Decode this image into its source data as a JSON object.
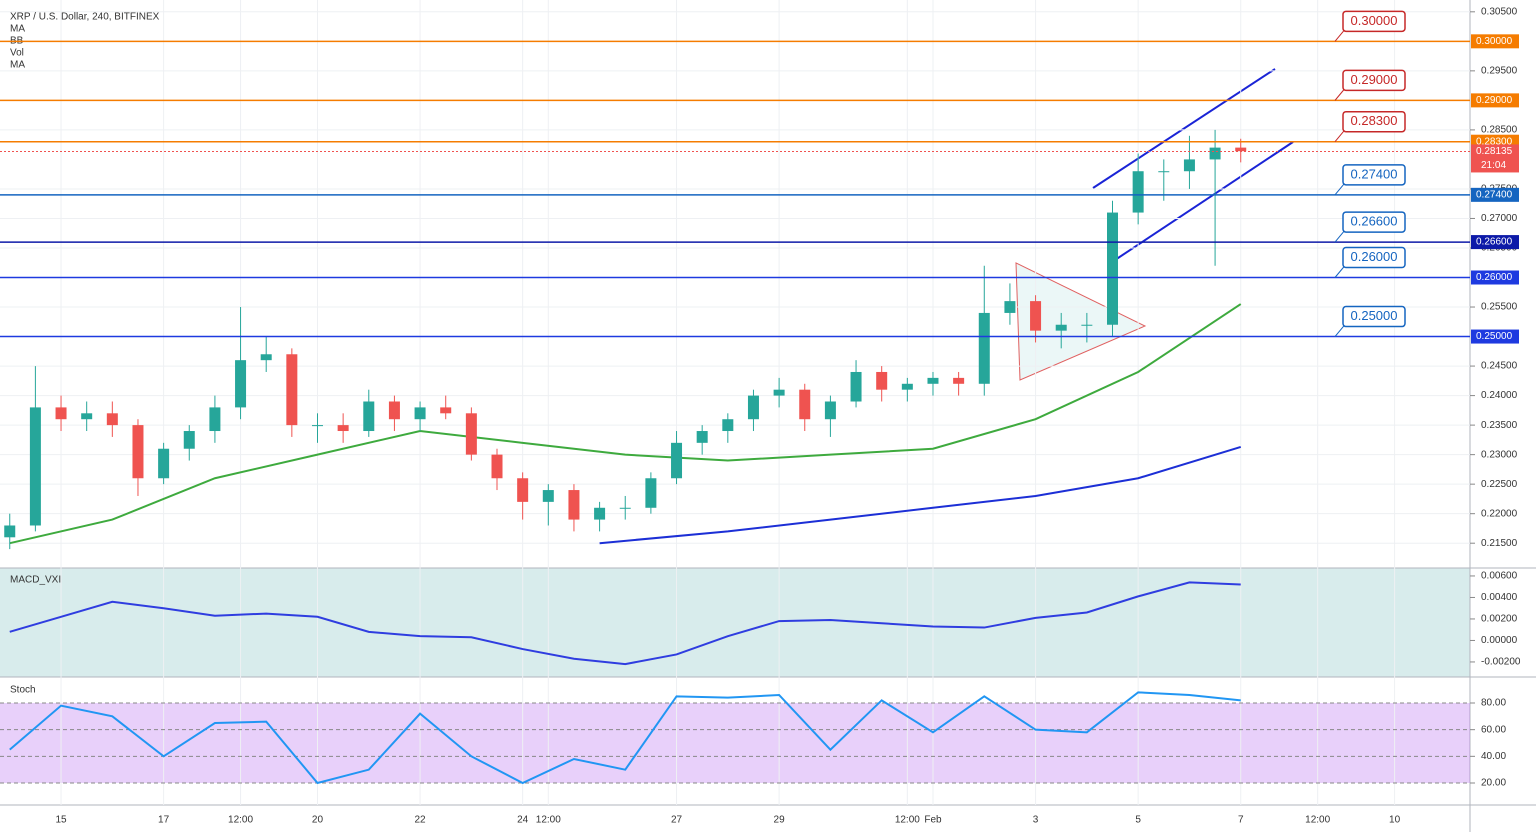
{
  "chart_data": [
    {
      "type": "candlestick",
      "title": "XRP / U.S. Dollar, 240, BITFINEX",
      "indicators": [
        "MA",
        "BB",
        "Vol",
        "MA"
      ],
      "x": [
        14.0,
        14.5,
        15.0,
        15.5,
        16.0,
        16.5,
        17.0,
        17.5,
        18.0,
        18.5,
        19.0,
        19.5,
        20.0,
        20.5,
        21.0,
        21.5,
        22.0,
        22.5,
        23.0,
        23.5,
        24.0,
        24.5,
        25.0,
        25.5,
        26.0,
        26.5,
        27.0,
        27.5,
        28.0,
        28.5,
        29.0,
        29.5,
        30.0,
        30.5,
        31.0,
        31.5,
        32.0,
        32.5,
        33.0,
        33.5,
        34.0,
        34.5,
        35.0,
        35.5,
        36.0,
        36.5,
        37.0,
        37.5,
        38.0
      ],
      "open": [
        0.216,
        0.218,
        0.238,
        0.236,
        0.237,
        0.235,
        0.226,
        0.231,
        0.234,
        0.238,
        0.246,
        0.247,
        0.235,
        0.235,
        0.234,
        0.239,
        0.236,
        0.238,
        0.237,
        0.23,
        0.226,
        0.222,
        0.224,
        0.219,
        0.221,
        0.221,
        0.226,
        0.232,
        0.234,
        0.236,
        0.24,
        0.241,
        0.236,
        0.239,
        0.244,
        0.241,
        0.242,
        0.243,
        0.242,
        0.254,
        0.256,
        0.251,
        0.252,
        0.252,
        0.271,
        0.278,
        0.278,
        0.28,
        0.282
      ],
      "high": [
        0.22,
        0.245,
        0.24,
        0.239,
        0.239,
        0.236,
        0.232,
        0.235,
        0.24,
        0.255,
        0.25,
        0.248,
        0.237,
        0.237,
        0.241,
        0.24,
        0.239,
        0.24,
        0.238,
        0.231,
        0.227,
        0.225,
        0.225,
        0.222,
        0.223,
        0.227,
        0.234,
        0.235,
        0.237,
        0.241,
        0.243,
        0.242,
        0.24,
        0.246,
        0.245,
        0.243,
        0.244,
        0.244,
        0.262,
        0.259,
        0.257,
        0.254,
        0.254,
        0.273,
        0.281,
        0.28,
        0.284,
        0.285,
        0.2835
      ],
      "low": [
        0.214,
        0.217,
        0.234,
        0.234,
        0.233,
        0.223,
        0.225,
        0.229,
        0.232,
        0.236,
        0.244,
        0.233,
        0.232,
        0.232,
        0.233,
        0.234,
        0.234,
        0.236,
        0.229,
        0.224,
        0.219,
        0.218,
        0.217,
        0.217,
        0.219,
        0.22,
        0.225,
        0.23,
        0.232,
        0.234,
        0.238,
        0.234,
        0.233,
        0.238,
        0.239,
        0.239,
        0.24,
        0.24,
        0.24,
        0.252,
        0.249,
        0.248,
        0.249,
        0.25,
        0.269,
        0.273,
        0.275,
        0.262,
        0.2795
      ],
      "close": [
        0.218,
        0.238,
        0.236,
        0.237,
        0.235,
        0.226,
        0.231,
        0.234,
        0.238,
        0.246,
        0.247,
        0.235,
        0.235,
        0.234,
        0.239,
        0.236,
        0.238,
        0.237,
        0.23,
        0.226,
        0.222,
        0.224,
        0.219,
        0.221,
        0.221,
        0.226,
        0.232,
        0.234,
        0.236,
        0.24,
        0.241,
        0.236,
        0.239,
        0.244,
        0.241,
        0.242,
        0.243,
        0.242,
        0.254,
        0.256,
        0.251,
        0.252,
        0.252,
        0.271,
        0.278,
        0.278,
        0.28,
        0.282,
        0.2814
      ],
      "up_color": "#26a69a",
      "down_color": "#ef5350",
      "series": [
        {
          "name": "MA",
          "color": "#3eaa3e",
          "x": [
            14,
            16,
            18,
            20,
            22,
            24,
            26,
            28,
            30,
            32,
            34,
            36,
            38
          ],
          "values": [
            0.215,
            0.219,
            0.226,
            0.23,
            0.234,
            0.232,
            0.23,
            0.229,
            0.23,
            0.231,
            0.236,
            0.244,
            0.2555
          ]
        },
        {
          "name": "MA",
          "color": "#1c2fd6",
          "x": [
            25.5,
            28,
            30,
            32,
            34,
            36,
            38
          ],
          "values": [
            0.215,
            0.217,
            0.219,
            0.221,
            0.223,
            0.226,
            0.2313
          ]
        }
      ],
      "levels": [
        {
          "value": 0.3,
          "label": "0.30000",
          "color": "#f57c00"
        },
        {
          "value": 0.29,
          "label": "0.29000",
          "color": "#f57c00"
        },
        {
          "value": 0.283,
          "label": "0.28300",
          "color": "#f57c00"
        },
        {
          "value": 0.274,
          "label": "0.27400",
          "color": "#1565c0"
        },
        {
          "value": 0.266,
          "label": "0.26600",
          "color": "#0d1aa8"
        },
        {
          "value": 0.26,
          "label": "0.26000",
          "color": "#1e3ae0"
        },
        {
          "value": 0.25,
          "label": "0.25000",
          "color": "#1e3ae0"
        }
      ],
      "annotation_colors": [
        "#c62828",
        "#c62828",
        "#c62828",
        "#1565c0",
        "#1565c0",
        "#1565c0",
        "#1565c0"
      ],
      "last_price": {
        "value": 0.28135,
        "label": "0.28135"
      },
      "countdown": "21:04",
      "xlim": [
        13.81,
        42.47
      ],
      "ylim": [
        0.2108,
        0.307
      ],
      "yticks": [
        {
          "value": 0.305,
          "label": "0.30500"
        },
        {
          "value": 0.295,
          "label": "0.29500"
        },
        {
          "value": 0.285,
          "label": "0.28500"
        },
        {
          "value": 0.275,
          "label": "0.27500"
        },
        {
          "value": 0.27,
          "label": "0.27000"
        },
        {
          "value": 0.265,
          "label": "0.26500"
        },
        {
          "value": 0.255,
          "label": "0.25500"
        },
        {
          "value": 0.245,
          "label": "0.24500"
        },
        {
          "value": 0.24,
          "label": "0.24000"
        },
        {
          "value": 0.235,
          "label": "0.23500"
        },
        {
          "value": 0.23,
          "label": "0.23000"
        },
        {
          "value": 0.225,
          "label": "0.22500"
        },
        {
          "value": 0.22,
          "label": "0.22000"
        },
        {
          "value": 0.215,
          "label": "0.21500"
        }
      ],
      "xticks": [
        15,
        17,
        {
          "value": 18.5,
          "label": "12:00"
        },
        20,
        22,
        24,
        {
          "value": 24.5,
          "label": "12:00"
        },
        27,
        29,
        {
          "value": 31.5,
          "label": "12:00"
        },
        {
          "value": 32,
          "label": "Feb"
        },
        {
          "value": 34,
          "label": "3"
        },
        {
          "value": 36,
          "label": "5"
        },
        {
          "value": 38,
          "label": "7"
        },
        {
          "value": 39.5,
          "label": "12:00"
        },
        {
          "value": 41,
          "label": "10"
        }
      ],
      "grid": true
    },
    {
      "type": "line",
      "title": "MACD_VXI",
      "x": [
        14,
        15,
        16,
        17,
        18,
        19,
        20,
        21,
        22,
        23,
        24,
        25,
        26,
        27,
        28,
        29,
        30,
        31,
        32,
        33,
        34,
        35,
        36,
        37,
        38
      ],
      "series": [
        {
          "name": "MACD",
          "color": "#2f3de0",
          "values": [
            0.0008,
            0.0022,
            0.0036,
            0.003,
            0.0023,
            0.0025,
            0.0022,
            0.0008,
            0.0004,
            0.0003,
            -0.0008,
            -0.0017,
            -0.0022,
            -0.0013,
            0.0004,
            0.0018,
            0.0019,
            0.0016,
            0.0013,
            0.0012,
            0.0021,
            0.0026,
            0.0041,
            0.0054,
            0.0052
          ]
        }
      ],
      "ylim": [
        -0.0034,
        0.00674
      ],
      "yticks": [
        {
          "value": 0.006,
          "label": "0.00600"
        },
        {
          "value": 0.004,
          "label": "0.00400"
        },
        {
          "value": 0.002,
          "label": "0.00200"
        },
        {
          "value": 0,
          "label": "0.00000"
        },
        {
          "value": -0.002,
          "label": "-0.00200"
        }
      ]
    },
    {
      "type": "line",
      "title": "Stoch",
      "x": [
        14,
        15,
        16,
        17,
        18,
        19,
        20,
        21,
        22,
        23,
        24,
        25,
        26,
        27,
        28,
        29,
        30,
        31,
        32,
        33,
        34,
        35,
        36,
        37,
        38
      ],
      "series": [
        {
          "name": "%K",
          "color": "#2196f3",
          "values": [
            45,
            78,
            70,
            40,
            65,
            66,
            20,
            30,
            72,
            40,
            20,
            38,
            30,
            85,
            84,
            86,
            45,
            82,
            58,
            85,
            60,
            58,
            88,
            86,
            82
          ]
        }
      ],
      "ylim": [
        3.5,
        99.5
      ],
      "yticks": [
        {
          "value": 80,
          "label": "80.00"
        },
        {
          "value": 60,
          "label": "60.00"
        },
        {
          "value": 40,
          "label": "40.00"
        },
        {
          "value": 20,
          "label": "20.00"
        }
      ]
    }
  ]
}
